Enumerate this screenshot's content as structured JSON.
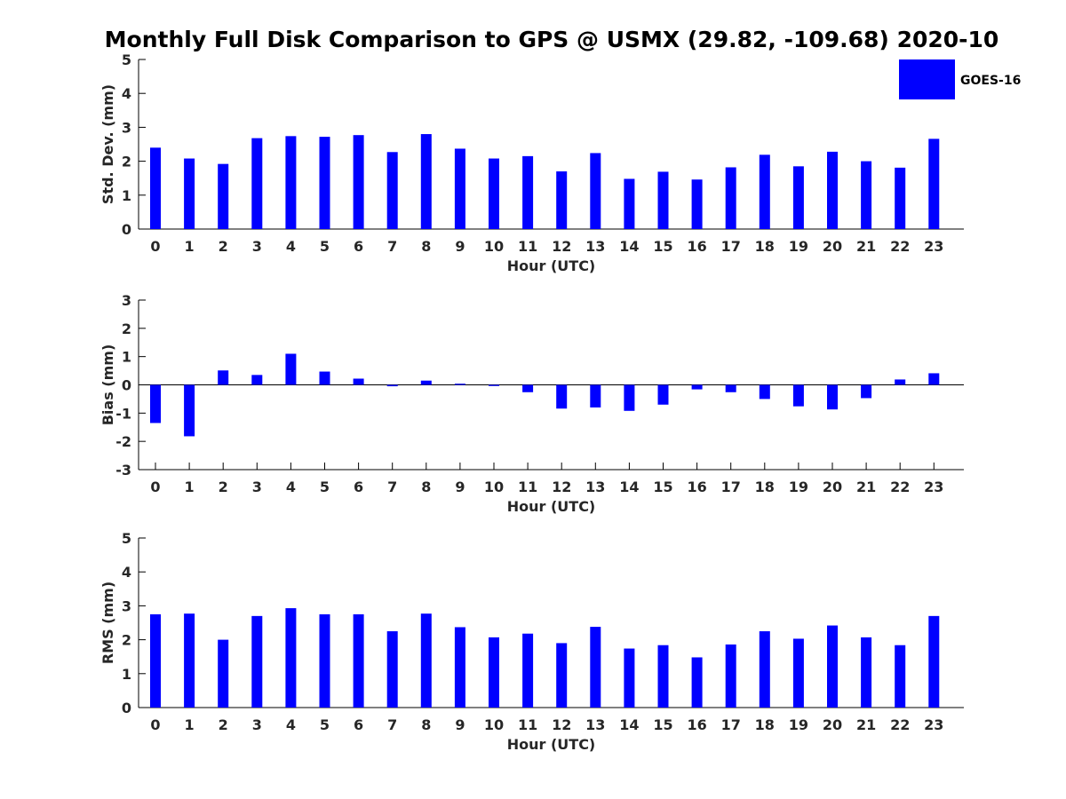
{
  "figure": {
    "title": "Monthly Full Disk Comparison to GPS @ USMX (29.82, -109.68) 2020-10",
    "legend_label": "GOES-16",
    "bar_color": "#0000ff"
  },
  "chart_data": [
    {
      "type": "bar",
      "xlabel": "Hour (UTC)",
      "ylabel": "Std. Dev. (mm)",
      "ylim": [
        0,
        5
      ],
      "yticks": [
        0,
        1,
        2,
        3,
        4,
        5
      ],
      "categories": [
        "0",
        "1",
        "2",
        "3",
        "4",
        "5",
        "6",
        "7",
        "8",
        "9",
        "10",
        "11",
        "12",
        "13",
        "14",
        "15",
        "16",
        "17",
        "18",
        "19",
        "20",
        "21",
        "22",
        "23"
      ],
      "series": [
        {
          "name": "GOES-16",
          "values": [
            2.4,
            2.08,
            1.92,
            2.68,
            2.74,
            2.72,
            2.77,
            2.27,
            2.8,
            2.37,
            2.08,
            2.15,
            1.7,
            2.24,
            1.48,
            1.69,
            1.46,
            1.82,
            2.19,
            1.85,
            2.28,
            2.0,
            1.81,
            2.66
          ]
        }
      ],
      "legend": "top-right"
    },
    {
      "type": "bar",
      "xlabel": "Hour (UTC)",
      "ylabel": "Bias (mm)",
      "ylim": [
        -3,
        3
      ],
      "yticks": [
        -3,
        -2,
        -1,
        0,
        1,
        2,
        3
      ],
      "categories": [
        "0",
        "1",
        "2",
        "3",
        "4",
        "5",
        "6",
        "7",
        "8",
        "9",
        "10",
        "11",
        "12",
        "13",
        "14",
        "15",
        "16",
        "17",
        "18",
        "19",
        "20",
        "21",
        "22",
        "23"
      ],
      "series": [
        {
          "name": "GOES-16",
          "values": [
            -1.35,
            -1.82,
            0.51,
            0.35,
            1.1,
            0.47,
            0.22,
            -0.05,
            0.15,
            0.04,
            -0.04,
            -0.26,
            -0.84,
            -0.8,
            -0.92,
            -0.7,
            -0.16,
            -0.26,
            -0.5,
            -0.76,
            -0.87,
            -0.47,
            0.19,
            0.41
          ]
        }
      ]
    },
    {
      "type": "bar",
      "xlabel": "Hour (UTC)",
      "ylabel": "RMS (mm)",
      "ylim": [
        0,
        5
      ],
      "yticks": [
        0,
        1,
        2,
        3,
        4,
        5
      ],
      "categories": [
        "0",
        "1",
        "2",
        "3",
        "4",
        "5",
        "6",
        "7",
        "8",
        "9",
        "10",
        "11",
        "12",
        "13",
        "14",
        "15",
        "16",
        "17",
        "18",
        "19",
        "20",
        "21",
        "22",
        "23"
      ],
      "series": [
        {
          "name": "GOES-16",
          "values": [
            2.75,
            2.77,
            2.0,
            2.7,
            2.93,
            2.75,
            2.75,
            2.25,
            2.77,
            2.37,
            2.07,
            2.18,
            1.9,
            2.38,
            1.74,
            1.84,
            1.48,
            1.86,
            2.25,
            2.03,
            2.42,
            2.07,
            1.84,
            2.7
          ]
        }
      ]
    }
  ]
}
